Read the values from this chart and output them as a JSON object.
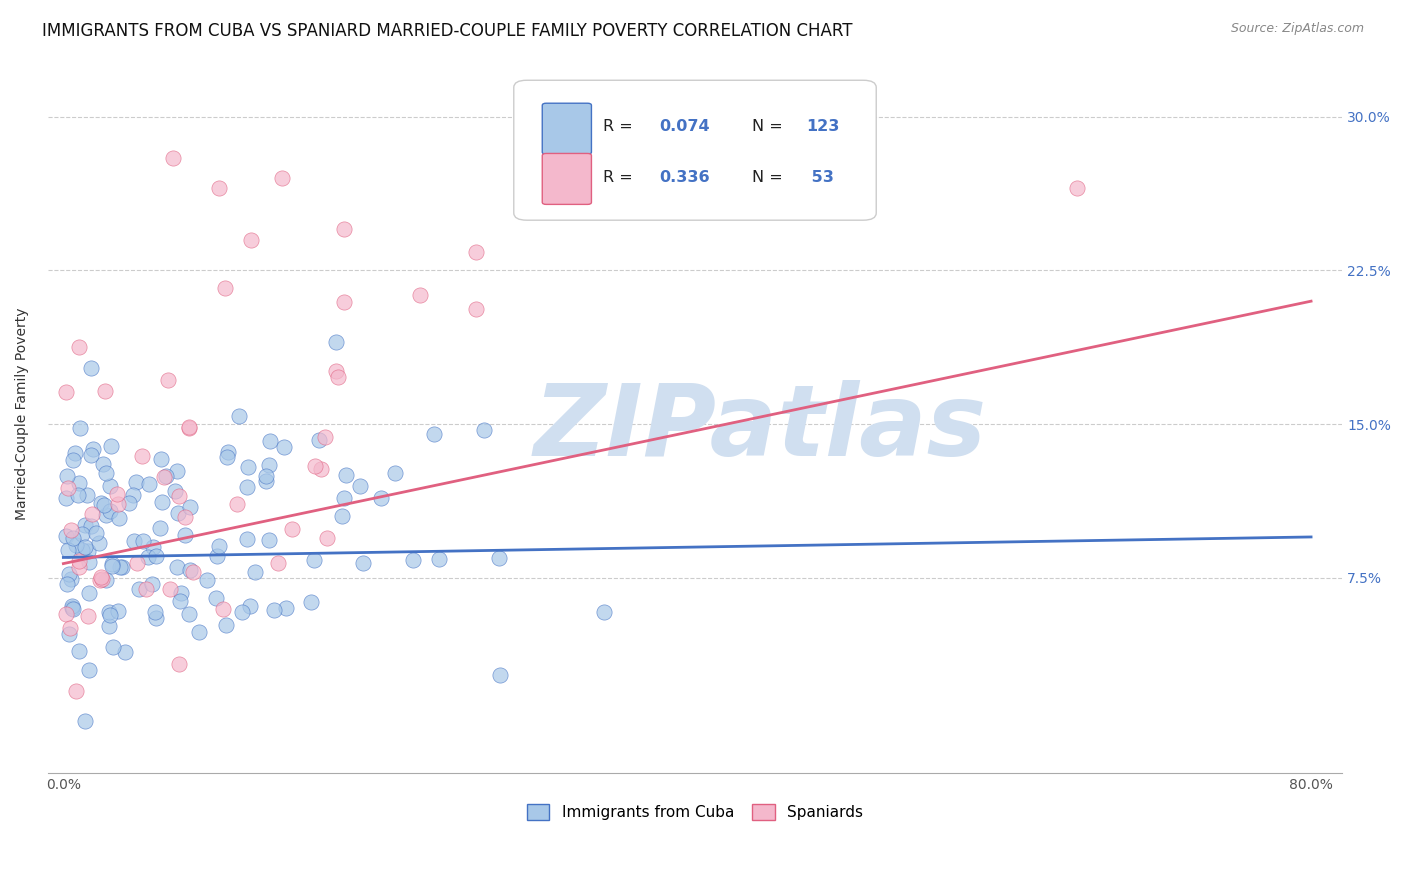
{
  "title": "IMMIGRANTS FROM CUBA VS SPANIARD MARRIED-COUPLE FAMILY POVERTY CORRELATION CHART",
  "source": "Source: ZipAtlas.com",
  "ylabel": "Married-Couple Family Poverty",
  "xlim": [
    -0.01,
    0.82
  ],
  "ylim": [
    -0.02,
    0.33
  ],
  "xticks": [
    0.0,
    0.2,
    0.4,
    0.6,
    0.8
  ],
  "xticklabels": [
    "0.0%",
    "",
    "",
    "",
    "80.0%"
  ],
  "yticks_right": [
    0.075,
    0.15,
    0.225,
    0.3
  ],
  "ytick_labels_right": [
    "7.5%",
    "15.0%",
    "22.5%",
    "30.0%"
  ],
  "watermark": "ZIPatlas",
  "color_cuba": "#a8c8e8",
  "color_spain": "#f4b8cc",
  "color_cuba_line": "#4472c4",
  "color_spain_line": "#e06080",
  "legend_label1": "Immigrants from Cuba",
  "legend_label2": "Spaniards",
  "background_color": "#ffffff",
  "grid_color": "#cccccc",
  "title_fontsize": 12,
  "axis_label_fontsize": 10,
  "tick_fontsize": 10,
  "watermark_color": "#d0dff0",
  "watermark_fontsize": 72,
  "cuba_seed": 42,
  "spain_seed": 99
}
